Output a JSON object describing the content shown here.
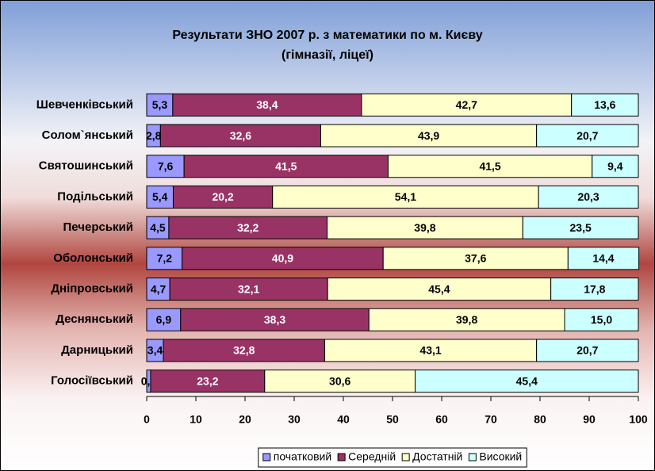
{
  "chart_data": {
    "type": "stacked_bar_horizontal",
    "title": "Результати ЗНО 2007 р. з математики по  м. Києву",
    "subtitle": "(гімназії, ліцеї)",
    "categories": [
      "Шевченківський",
      "Солом`янський",
      "Святошинський",
      "Подільський",
      "Печерський",
      "Оболонський",
      "Дніпровський",
      "Деснянський",
      "Дарницький",
      "Голосіївський"
    ],
    "series": [
      {
        "name": "початковий",
        "color": "#9999ff",
        "label_color": "#000000",
        "values": [
          5.3,
          2.8,
          7.6,
          5.4,
          4.5,
          7.2,
          4.7,
          6.9,
          3.4,
          0.8
        ],
        "value_labels": [
          "5,3",
          "2,8",
          "7,6",
          "5,4",
          "4,5",
          "7,2",
          "4,7",
          "6,9",
          "3,4",
          "0,8"
        ]
      },
      {
        "name": "Середній",
        "color": "#993366",
        "label_color": "#ffffff",
        "values": [
          38.4,
          32.6,
          41.5,
          20.2,
          32.2,
          40.9,
          32.1,
          38.3,
          32.8,
          23.2
        ],
        "value_labels": [
          "38,4",
          "32,6",
          "41,5",
          "20,2",
          "32,2",
          "40,9",
          "32,1",
          "38,3",
          "32,8",
          "23,2"
        ]
      },
      {
        "name": "Достатній",
        "color": "#ffffcc",
        "label_color": "#000000",
        "values": [
          42.7,
          43.9,
          41.5,
          54.1,
          39.8,
          37.6,
          45.4,
          39.8,
          43.1,
          30.6
        ],
        "value_labels": [
          "42,7",
          "43,9",
          "41,5",
          "54,1",
          "39,8",
          "37,6",
          "45,4",
          "39,8",
          "43,1",
          "30,6"
        ]
      },
      {
        "name": "Високий",
        "color": "#ccffff",
        "label_color": "#000000",
        "values": [
          13.6,
          20.7,
          9.4,
          20.3,
          23.5,
          14.4,
          17.8,
          15.0,
          20.7,
          45.4
        ],
        "value_labels": [
          "13,6",
          "20,7",
          "9,4",
          "20,3",
          "23,5",
          "14,4",
          "17,8",
          "15,0",
          "20,7",
          "45,4"
        ]
      }
    ],
    "xlim": [
      0,
      100
    ],
    "xticks": [
      0,
      10,
      20,
      30,
      40,
      50,
      60,
      70,
      80,
      90,
      100
    ],
    "legend": "bottom"
  }
}
